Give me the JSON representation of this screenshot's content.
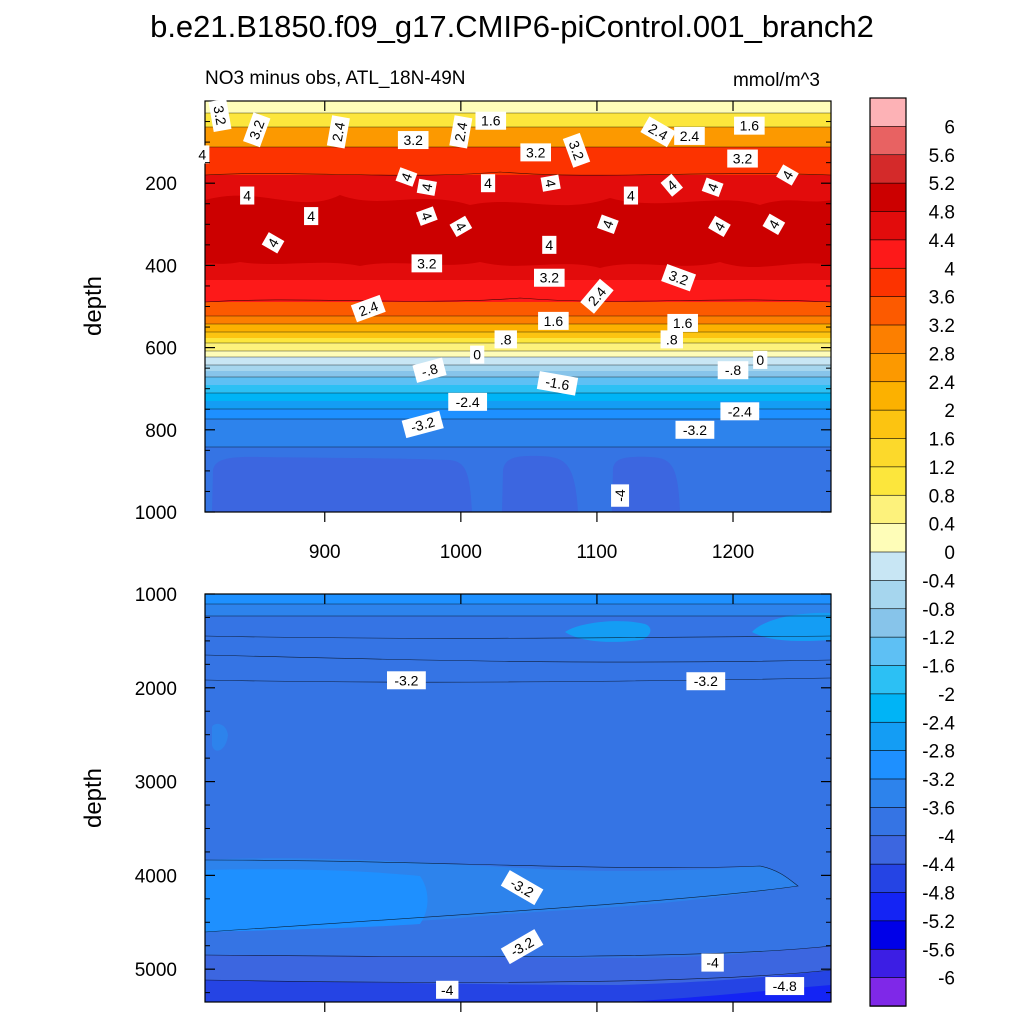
{
  "chart_data": {
    "type": "contour",
    "title": "b.e21.B1850.f09_g17.CMIP6-piControl.001_branch2",
    "subtitle_left": "NO3 minus obs, ATL_18N-49N",
    "units": "mmol/m^3",
    "ylabel": "depth",
    "x_ticks": [
      900,
      1000,
      1100,
      1200
    ],
    "x_range": [
      812,
      1272
    ],
    "top_panel": {
      "ylim": [
        0,
        1000
      ],
      "y_ticks": [
        200,
        400,
        600,
        800,
        1000
      ]
    },
    "bottom_panel": {
      "ylim": [
        1000,
        5350
      ],
      "y_ticks": [
        1000,
        2000,
        3000,
        4000,
        5000
      ]
    },
    "colorbar": {
      "labels": [
        "6",
        "5.6",
        "5.2",
        "4.8",
        "4.4",
        "4",
        "3.6",
        "3.2",
        "2.8",
        "2.4",
        "2",
        "1.6",
        "1.2",
        "0.8",
        "0.4",
        "0",
        "-0.4",
        "-0.8",
        "-1.2",
        "-1.6",
        "-2",
        "-2.4",
        "-2.8",
        "-3.2",
        "-3.6",
        "-4",
        "-4.4",
        "-4.8",
        "-5.2",
        "-5.6",
        "-6"
      ],
      "colors": [
        "#fdb2b6",
        "#e86262",
        "#d42a2a",
        "#cc0000",
        "#e20c0c",
        "#fd1919",
        "#fc3300",
        "#fc5a00",
        "#fc7f00",
        "#fc9900",
        "#fcb100",
        "#fcc411",
        "#fcd92b",
        "#fce63c",
        "#fdf27c",
        "#fefdb8",
        "#c8e6f4",
        "#a6d6ee",
        "#87c4ea",
        "#5ec0f4",
        "#2cc0f4",
        "#00b4f6",
        "#149df4",
        "#1e90ff",
        "#2d83ec",
        "#3574e4",
        "#3c66e0",
        "#2544e4",
        "#1424f4",
        "#0000e8",
        "#3c1ee4",
        "#7f28e8"
      ]
    },
    "contour_labels_top": [
      {
        "x": 823,
        "y": 35,
        "t": "3.2",
        "r": 80
      },
      {
        "x": 850,
        "y": 70,
        "t": "3.2",
        "r": -70
      },
      {
        "x": 810,
        "y": 130,
        "t": "4",
        "r": 0
      },
      {
        "x": 910,
        "y": 75,
        "t": "2.4",
        "r": -80
      },
      {
        "x": 965,
        "y": 95,
        "t": "3.2",
        "r": 0
      },
      {
        "x": 1000,
        "y": 75,
        "t": "2.4",
        "r": -80
      },
      {
        "x": 1022,
        "y": 48,
        "t": "1.6",
        "r": 0
      },
      {
        "x": 1055,
        "y": 125,
        "t": "3.2",
        "r": 0
      },
      {
        "x": 1085,
        "y": 120,
        "t": "3.2",
        "r": 70
      },
      {
        "x": 1145,
        "y": 75,
        "t": "2.4",
        "r": 30
      },
      {
        "x": 1168,
        "y": 85,
        "t": "2.4",
        "r": 0
      },
      {
        "x": 1212,
        "y": 60,
        "t": "1.6",
        "r": 0
      },
      {
        "x": 1207,
        "y": 140,
        "t": "3.2",
        "r": 0
      },
      {
        "x": 960,
        "y": 185,
        "t": "4",
        "r": -70
      },
      {
        "x": 843,
        "y": 230,
        "t": "4",
        "r": 0
      },
      {
        "x": 890,
        "y": 280,
        "t": "4",
        "r": 0
      },
      {
        "x": 862,
        "y": 345,
        "t": "4",
        "r": -60
      },
      {
        "x": 975,
        "y": 210,
        "t": "4",
        "r": -80
      },
      {
        "x": 975,
        "y": 280,
        "t": "4",
        "r": 70
      },
      {
        "x": 1000,
        "y": 305,
        "t": "4",
        "r": 60
      },
      {
        "x": 1020,
        "y": 200,
        "t": "4",
        "r": 0
      },
      {
        "x": 1066,
        "y": 200,
        "t": "4",
        "r": 80
      },
      {
        "x": 1108,
        "y": 300,
        "t": "4",
        "r": -70
      },
      {
        "x": 1125,
        "y": 230,
        "t": "4",
        "r": 0
      },
      {
        "x": 1155,
        "y": 205,
        "t": "4",
        "r": -40
      },
      {
        "x": 1185,
        "y": 210,
        "t": "4",
        "r": -70
      },
      {
        "x": 1240,
        "y": 180,
        "t": "4",
        "r": -60
      },
      {
        "x": 1190,
        "y": 305,
        "t": "4",
        "r": -60
      },
      {
        "x": 1230,
        "y": 300,
        "t": "4",
        "r": -60
      },
      {
        "x": 1065,
        "y": 350,
        "t": "4",
        "r": 0
      },
      {
        "x": 975,
        "y": 395,
        "t": "3.2",
        "r": 0
      },
      {
        "x": 1065,
        "y": 430,
        "t": "3.2",
        "r": 0
      },
      {
        "x": 1160,
        "y": 430,
        "t": "3.2",
        "r": 20
      },
      {
        "x": 1100,
        "y": 475,
        "t": "2.4",
        "r": -50
      },
      {
        "x": 932,
        "y": 505,
        "t": "2.4",
        "r": -20
      },
      {
        "x": 1068,
        "y": 535,
        "t": "1.6",
        "r": 0
      },
      {
        "x": 1163,
        "y": 540,
        "t": "1.6",
        "r": 0
      },
      {
        "x": 1033,
        "y": 580,
        "t": ".8",
        "r": 0
      },
      {
        "x": 1155,
        "y": 580,
        "t": ".8",
        "r": 0
      },
      {
        "x": 1012,
        "y": 617,
        "t": "0",
        "r": 0
      },
      {
        "x": 1220,
        "y": 630,
        "t": "0",
        "r": 0
      },
      {
        "x": 977,
        "y": 655,
        "t": "-.8",
        "r": -15
      },
      {
        "x": 1200,
        "y": 655,
        "t": "-.8",
        "r": 0
      },
      {
        "x": 1071,
        "y": 687,
        "t": "-1.6",
        "r": 10
      },
      {
        "x": 1005,
        "y": 732,
        "t": "-2.4",
        "r": 0
      },
      {
        "x": 1205,
        "y": 755,
        "t": "-2.4",
        "r": 0
      },
      {
        "x": 972,
        "y": 787,
        "t": "-3.2",
        "r": -15
      },
      {
        "x": 1172,
        "y": 800,
        "t": "-3.2",
        "r": 0
      },
      {
        "x": 1117,
        "y": 960,
        "t": "-4",
        "r": -90
      }
    ],
    "contour_labels_bottom": [
      {
        "x": 960,
        "y": 1920,
        "t": "-3.2",
        "r": 0
      },
      {
        "x": 1180,
        "y": 1930,
        "t": "-3.2",
        "r": 0
      },
      {
        "x": 1045,
        "y": 4130,
        "t": "-3.2",
        "r": 30
      },
      {
        "x": 1045,
        "y": 4760,
        "t": "-3.2",
        "r": -30
      },
      {
        "x": 1185,
        "y": 4930,
        "t": "-4",
        "r": 0
      },
      {
        "x": 1238,
        "y": 5180,
        "t": "-4.8",
        "r": 0
      },
      {
        "x": 990,
        "y": 5220,
        "t": "-4",
        "r": 0
      }
    ]
  }
}
